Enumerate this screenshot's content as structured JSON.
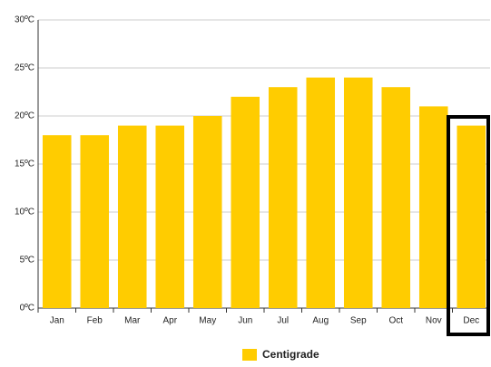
{
  "chart_data": {
    "type": "bar",
    "categories": [
      "Jan",
      "Feb",
      "Mar",
      "Apr",
      "May",
      "Jun",
      "Jul",
      "Aug",
      "Sep",
      "Oct",
      "Nov",
      "Dec"
    ],
    "series": [
      {
        "name": "Centigrade",
        "color": "#ffcc00",
        "values": [
          18,
          18,
          19,
          19,
          20,
          22,
          23,
          24,
          24,
          23,
          21,
          19
        ]
      }
    ],
    "ylim": [
      0,
      30
    ],
    "yticks": [
      {
        "value": 0,
        "label": "0ºC"
      },
      {
        "value": 5,
        "label": "5ºC"
      },
      {
        "value": 10,
        "label": "10ºC"
      },
      {
        "value": 15,
        "label": "15ºC"
      },
      {
        "value": 20,
        "label": "20ºC"
      },
      {
        "value": 25,
        "label": "25ºC"
      },
      {
        "value": 30,
        "label": "30ºC"
      }
    ],
    "grid": true,
    "legend": "bottom"
  }
}
